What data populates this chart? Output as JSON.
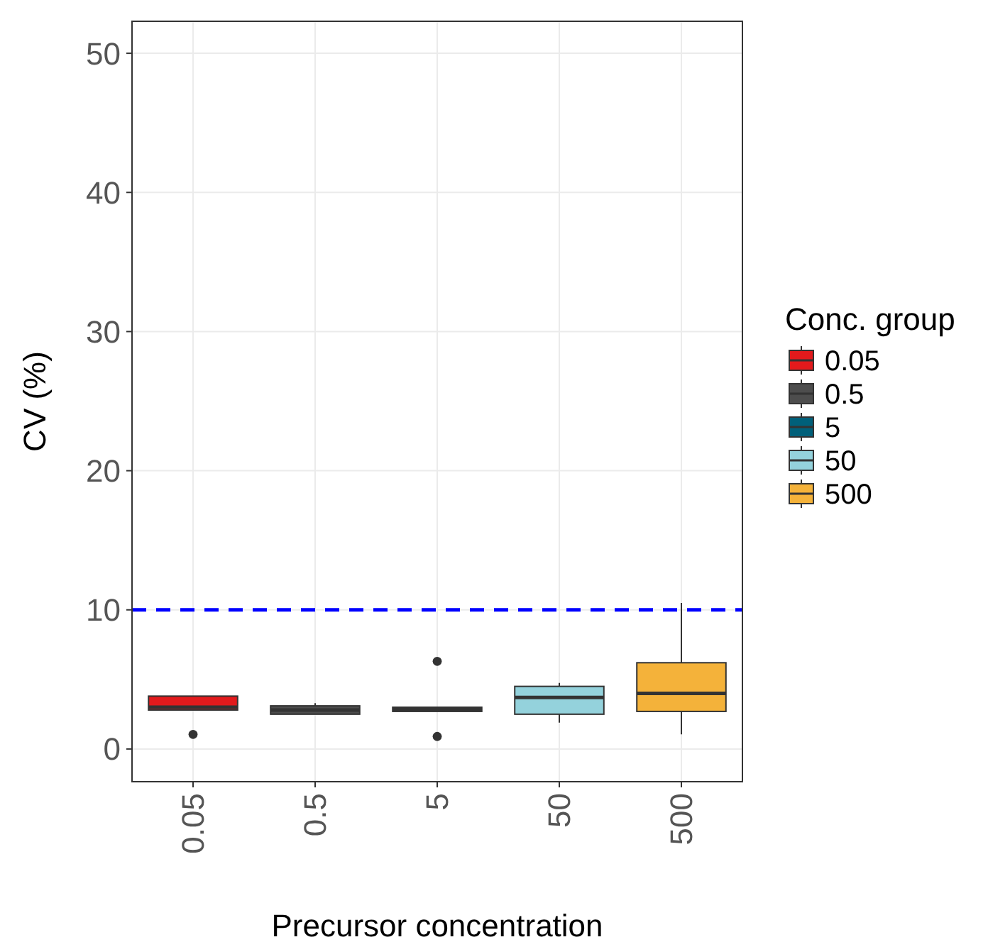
{
  "chart_data": {
    "type": "box",
    "xlabel": "Precursor concentration",
    "ylabel": "CV (%)",
    "legend_title": "Conc. group",
    "legend": "right",
    "grid": true,
    "categories": [
      "0.05",
      "0.5",
      "5",
      "50",
      "500"
    ],
    "series": [
      {
        "name": "0.05",
        "color": "#e31a1c",
        "boxes": [
          {
            "low": 2.8,
            "q1": 2.8,
            "median": 3.0,
            "q3": 3.8,
            "high": 3.8,
            "outliers": [
              1.05
            ]
          },
          null,
          null,
          null,
          null
        ]
      },
      {
        "name": "0.5",
        "color": "#4d4d4d",
        "boxes": [
          null,
          {
            "low": 2.5,
            "q1": 2.5,
            "median": 2.8,
            "q3": 3.1,
            "high": 3.3
          },
          null,
          null,
          null
        ]
      },
      {
        "name": "5",
        "color": "#00607a",
        "boxes": [
          null,
          null,
          {
            "low": 2.7,
            "q1": 2.7,
            "median": 2.85,
            "q3": 3.0,
            "high": 3.0,
            "outliers": [
              6.3,
              0.9
            ]
          },
          null,
          null
        ]
      },
      {
        "name": "50",
        "color": "#94d2dc",
        "boxes": [
          null,
          null,
          null,
          {
            "low": 1.9,
            "q1": 2.5,
            "median": 3.7,
            "q3": 4.5,
            "high": 4.75
          },
          null
        ]
      },
      {
        "name": "500",
        "color": "#f4b23a",
        "boxes": [
          null,
          null,
          null,
          null,
          {
            "low": 1.05,
            "q1": 2.7,
            "median": 4.0,
            "q3": 6.2,
            "high": 10.5
          }
        ]
      }
    ],
    "ylim": [
      -2.35,
      52.3
    ],
    "yticks": [
      0,
      10,
      20,
      30,
      40,
      50
    ],
    "ref_lines": [
      {
        "axis": "y",
        "value": 10,
        "color": "#0000ff",
        "line_style": "dashed"
      }
    ]
  }
}
